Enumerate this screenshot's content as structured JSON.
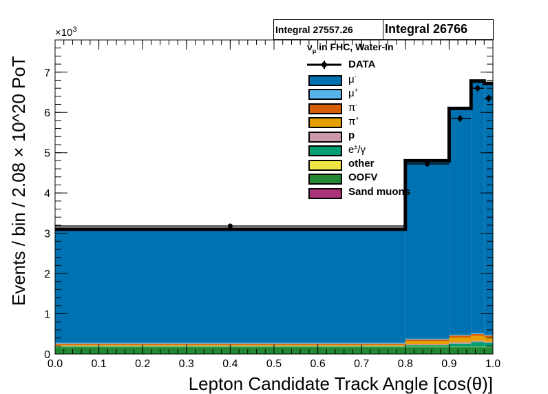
{
  "integral_boxes": [
    {
      "text": "Integral 27557.26"
    },
    {
      "text": "Integral 26766"
    }
  ],
  "legend": {
    "title": "ν_μ in FHC, Water-In",
    "entries": [
      {
        "label": "DATA",
        "color": "#000000",
        "kind": "data"
      },
      {
        "label": "μ⁻",
        "color": "#0072b2",
        "kind": "fill"
      },
      {
        "label": "μ⁺",
        "color": "#56b4e9",
        "kind": "fill"
      },
      {
        "label": "π⁻",
        "color": "#d55e00",
        "kind": "fill"
      },
      {
        "label": "π⁺",
        "color": "#e69f00",
        "kind": "fill"
      },
      {
        "label": "p",
        "color": "#cc99aa",
        "kind": "fill"
      },
      {
        "label": "e±/γ",
        "color": "#009e73",
        "kind": "fill"
      },
      {
        "label": "other",
        "color": "#f0e442",
        "kind": "fill"
      },
      {
        "label": "OOFV",
        "color": "#228833",
        "kind": "fill"
      },
      {
        "label": "Sand muons",
        "color": "#aa3377",
        "kind": "fill"
      }
    ]
  },
  "chart_data": {
    "type": "bar",
    "subtype": "stacked histogram with data points",
    "xlabel": "Lepton Candidate Track Angle [cos(θ)]",
    "ylabel": "Events / bin / 2.08 × 10^20 PoT",
    "y_multiplier": "×10³",
    "xlim": [
      0.0,
      1.0
    ],
    "ylim": [
      0,
      7.8
    ],
    "x_ticks": [
      "0.0",
      "0.1",
      "0.2",
      "0.3",
      "0.4",
      "0.5",
      "0.6",
      "0.7",
      "0.8",
      "0.9",
      "1.0"
    ],
    "y_ticks": [
      "0",
      "1",
      "2",
      "3",
      "4",
      "5",
      "6",
      "7"
    ],
    "bin_edges": [
      0.0,
      0.8,
      0.9,
      0.95,
      0.98,
      1.0
    ],
    "series": [
      {
        "name": "OOFV",
        "color": "#228833",
        "values": [
          0.17,
          0.17,
          0.17,
          0.17,
          0.17
        ]
      },
      {
        "name": "Sand muons",
        "color": "#aa3377",
        "values": [
          0.0,
          0.0,
          0.0,
          0.0,
          0.0
        ]
      },
      {
        "name": "other",
        "color": "#f0e442",
        "values": [
          0.01,
          0.01,
          0.01,
          0.01,
          0.01
        ]
      },
      {
        "name": "e±/γ",
        "color": "#009e73",
        "values": [
          0.02,
          0.04,
          0.08,
          0.12,
          0.1
        ]
      },
      {
        "name": "p",
        "color": "#cc99aa",
        "values": [
          0.01,
          0.02,
          0.03,
          0.03,
          0.03
        ]
      },
      {
        "name": "π⁺",
        "color": "#e69f00",
        "values": [
          0.02,
          0.08,
          0.12,
          0.12,
          0.11
        ]
      },
      {
        "name": "π⁻",
        "color": "#d55e00",
        "values": [
          0.03,
          0.04,
          0.05,
          0.05,
          0.04
        ]
      },
      {
        "name": "μ⁺",
        "color": "#56b4e9",
        "values": [
          0.02,
          0.02,
          0.02,
          0.02,
          0.02
        ]
      },
      {
        "name": "μ⁻",
        "color": "#0072b2",
        "values": [
          2.82,
          4.42,
          5.62,
          6.26,
          6.21
        ]
      }
    ],
    "mc_total": [
      3.1,
      4.8,
      6.1,
      6.78,
      6.72
    ],
    "data_points": {
      "x": [
        0.4,
        0.85,
        0.925,
        0.965,
        0.99
      ],
      "y": [
        3.18,
        4.72,
        5.85,
        6.6,
        6.35
      ],
      "xerr": [
        0.4,
        0.05,
        0.025,
        0.015,
        0.01
      ],
      "yerr": [
        0.03,
        0.04,
        0.05,
        0.05,
        0.05
      ]
    },
    "grid": false,
    "legend_position": "top-right"
  }
}
